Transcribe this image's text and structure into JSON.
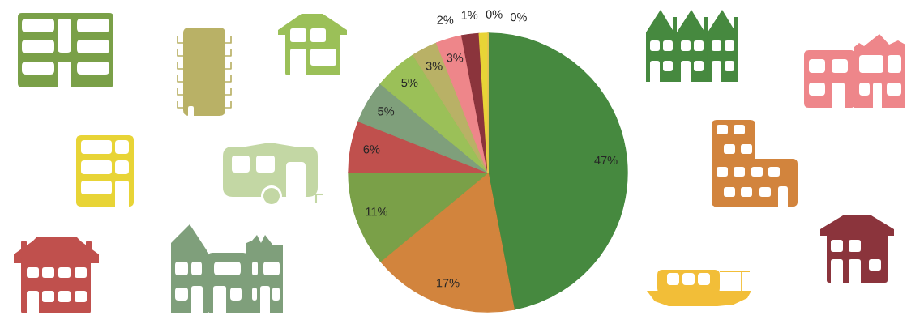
{
  "chart_data": {
    "type": "pie",
    "categories": [
      null,
      null,
      null,
      null,
      null,
      null,
      null,
      null,
      null,
      null,
      null,
      null
    ],
    "values": [
      47,
      17,
      11,
      6,
      5,
      5,
      3,
      3,
      2,
      1,
      0,
      0
    ],
    "colors": [
      "#46893f",
      "#d2843d",
      "#7aa048",
      "#c0504d",
      "#7f9f7b",
      "#9bc058",
      "#b9b166",
      "#ee868a",
      "#8b343c",
      "#e8d436",
      "#c3d7a4",
      "#f2be38"
    ],
    "value_labels": [
      "47%",
      "17%",
      "11%",
      "6%",
      "5%",
      "5%",
      "3%",
      "3%",
      "2%",
      "1%",
      "0%",
      "0%"
    ]
  }
}
